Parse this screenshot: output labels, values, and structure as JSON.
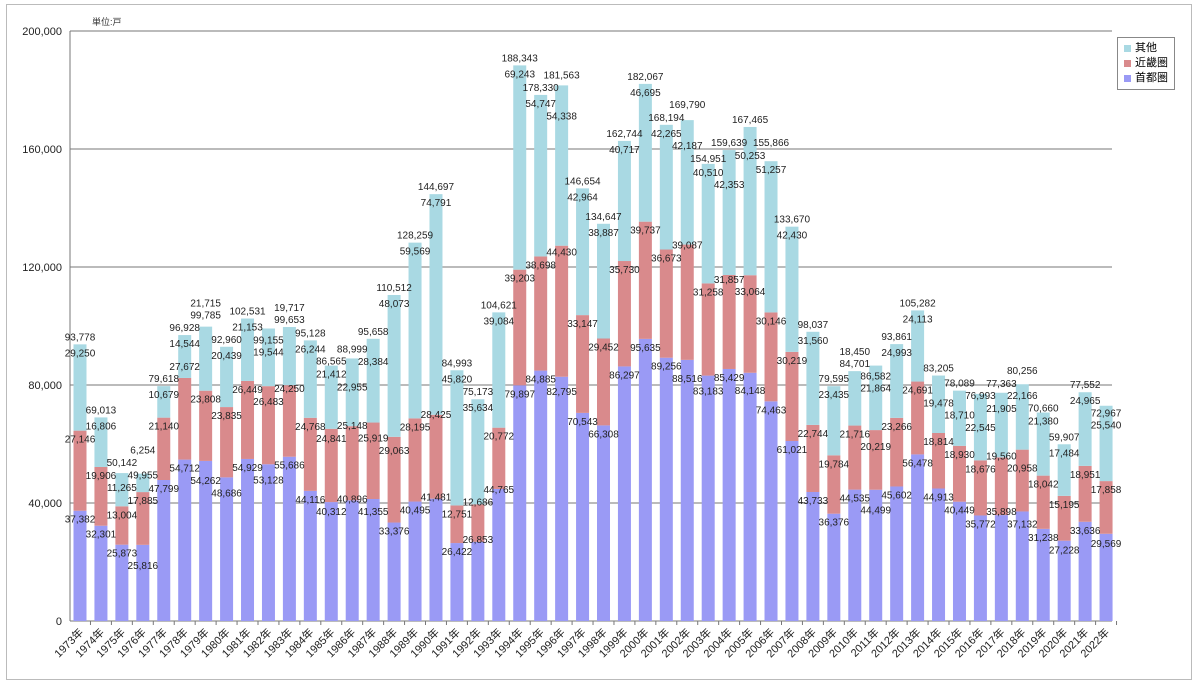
{
  "chart_data": {
    "type": "bar",
    "stacked": true,
    "unit_label": "単位:戸",
    "ylim": [
      0,
      200000
    ],
    "yticks": [
      0,
      40000,
      80000,
      120000,
      160000,
      200000
    ],
    "ytick_labels": [
      "0",
      "40,000",
      "80,000",
      "120,000",
      "160,000",
      "200,000"
    ],
    "grid": true,
    "legend_position": "top-right",
    "categories": [
      "1973年",
      "1974年",
      "1975年",
      "1976年",
      "1977年",
      "1978年",
      "1979年",
      "1980年",
      "1981年",
      "1982年",
      "1983年",
      "1984年",
      "1985年",
      "1986年",
      "1987年",
      "1988年",
      "1989年",
      "1990年",
      "1991年",
      "1992年",
      "1993年",
      "1994年",
      "1995年",
      "1996年",
      "1997年",
      "1998年",
      "1999年",
      "2000年",
      "2001年",
      "2002年",
      "2003年",
      "2004年",
      "2005年",
      "2006年",
      "2007年",
      "2008年",
      "2009年",
      "2010年",
      "2011年",
      "2012年",
      "2013年",
      "2014年",
      "2015年",
      "2016年",
      "2017年",
      "2018年",
      "2019年",
      "2020年",
      "2021年",
      "2022年"
    ],
    "series": [
      {
        "name": "首都圏",
        "color": "#9a9af5",
        "values": [
          37382,
          32301,
          25873,
          25816,
          47799,
          54712,
          54262,
          48686,
          54929,
          53128,
          55686,
          44116,
          40312,
          40896,
          41355,
          33376,
          40495,
          41481,
          26422,
          26853,
          44765,
          79897,
          84885,
          82795,
          70543,
          66308,
          86297,
          95635,
          89256,
          88516,
          83183,
          85429,
          84148,
          74463,
          61021,
          43733,
          36376,
          44535,
          44499,
          45602,
          56478,
          44913,
          40449,
          35772,
          35898,
          37132,
          31238,
          27228,
          33636,
          29569
        ]
      },
      {
        "name": "近畿圏",
        "color": "#d98a8c",
        "values": [
          27146,
          19906,
          13004,
          17885,
          21140,
          27672,
          23808,
          23835,
          26449,
          26483,
          24250,
          24768,
          24841,
          25148,
          25919,
          29063,
          28195,
          28425,
          12751,
          12686,
          20772,
          39203,
          38698,
          44430,
          33147,
          29452,
          35730,
          39737,
          36673,
          39087,
          31258,
          31857,
          33064,
          30146,
          30219,
          22744,
          19784,
          21716,
          20219,
          23266,
          24691,
          18814,
          18930,
          18676,
          19560,
          20958,
          18042,
          15195,
          18951,
          17858
        ]
      },
      {
        "name": "其他",
        "color": "#a9d9e3",
        "values": [
          29250,
          16806,
          11265,
          6254,
          10679,
          14544,
          21715,
          20439,
          21153,
          19544,
          19717,
          26244,
          21412,
          22955,
          28384,
          48073,
          59569,
          74791,
          45820,
          35634,
          39084,
          69243,
          54747,
          54338,
          42964,
          38887,
          40717,
          46695,
          42265,
          42187,
          40510,
          42353,
          50253,
          51257,
          42430,
          31560,
          23435,
          18450,
          21864,
          24993,
          24113,
          19478,
          18710,
          22545,
          21905,
          22166,
          21380,
          17484,
          24965,
          25540
        ]
      }
    ],
    "totals": [
      93778,
      69013,
      50142,
      49955,
      79618,
      96928,
      99785,
      92960,
      102531,
      99155,
      99653,
      95128,
      86565,
      88999,
      95658,
      110512,
      128259,
      144697,
      84993,
      75173,
      104621,
      188343,
      178330,
      181563,
      146654,
      134647,
      162744,
      182067,
      168194,
      169790,
      154951,
      159639,
      167465,
      155866,
      133670,
      98037,
      79595,
      84701,
      86582,
      93861,
      105282,
      83205,
      78089,
      76993,
      77363,
      80256,
      70660,
      59907,
      77552,
      72967
    ]
  }
}
